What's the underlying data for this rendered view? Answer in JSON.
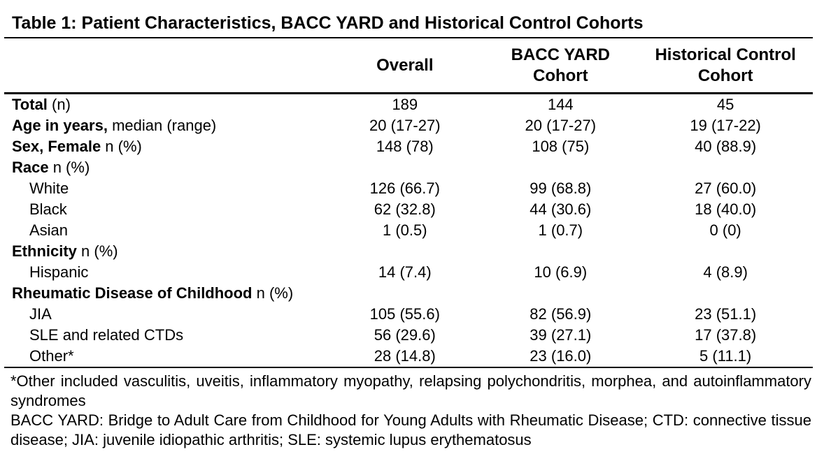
{
  "title": "Table 1: Patient Characteristics, BACC YARD and Historical Control Cohorts",
  "table": {
    "columns": [
      "Overall",
      "BACC YARD Cohort",
      "Historical Control Cohort"
    ],
    "rows": [
      {
        "bold": "Total",
        "rest": " (n)",
        "indent": false,
        "values": [
          "189",
          "144",
          "45"
        ]
      },
      {
        "bold": "Age in years,",
        "rest": " median (range)",
        "indent": false,
        "values": [
          "20 (17-27)",
          "20 (17-27)",
          "19 (17-22)"
        ]
      },
      {
        "bold": "Sex, Female",
        "rest": " n (%)",
        "indent": false,
        "values": [
          "148 (78)",
          "108 (75)",
          "40 (88.9)"
        ]
      },
      {
        "bold": "Race",
        "rest": " n (%)",
        "indent": false,
        "values": [
          "",
          "",
          ""
        ]
      },
      {
        "bold": "",
        "rest": "White",
        "indent": true,
        "values": [
          "126 (66.7)",
          "99 (68.8)",
          "27 (60.0)"
        ]
      },
      {
        "bold": "",
        "rest": "Black",
        "indent": true,
        "values": [
          "62 (32.8)",
          "44 (30.6)",
          "18 (40.0)"
        ]
      },
      {
        "bold": "",
        "rest": "Asian",
        "indent": true,
        "values": [
          "1 (0.5)",
          "1 (0.7)",
          "0 (0)"
        ]
      },
      {
        "bold": "Ethnicity",
        "rest": " n (%)",
        "indent": false,
        "values": [
          "",
          "",
          ""
        ]
      },
      {
        "bold": "",
        "rest": "Hispanic",
        "indent": true,
        "values": [
          "14 (7.4)",
          "10 (6.9)",
          "4 (8.9)"
        ]
      },
      {
        "bold": "Rheumatic Disease of Childhood",
        "rest": " n (%)",
        "indent": false,
        "values": [
          "",
          "",
          ""
        ]
      },
      {
        "bold": "",
        "rest": "JIA",
        "indent": true,
        "values": [
          "105 (55.6)",
          "82 (56.9)",
          "23 (51.1)"
        ]
      },
      {
        "bold": "",
        "rest": "SLE and related CTDs",
        "indent": true,
        "values": [
          "56 (29.6)",
          "39 (27.1)",
          "17 (37.8)"
        ]
      },
      {
        "bold": "",
        "rest": "Other*",
        "indent": true,
        "values": [
          "28 (14.8)",
          "23 (16.0)",
          "5 (11.1)"
        ]
      }
    ]
  },
  "footnotes": [
    "*Other included vasculitis, uveitis, inflammatory myopathy, relapsing polychondritis, morphea, and autoinflammatory syndromes",
    "BACC YARD: Bridge to Adult Care from Childhood for Young Adults with Rheumatic Disease; CTD: connective tissue disease; JIA: juvenile idiopathic arthritis; SLE: systemic lupus erythematosus"
  ],
  "colors": {
    "text": "#000000",
    "background": "#ffffff",
    "rule": "#000000"
  }
}
